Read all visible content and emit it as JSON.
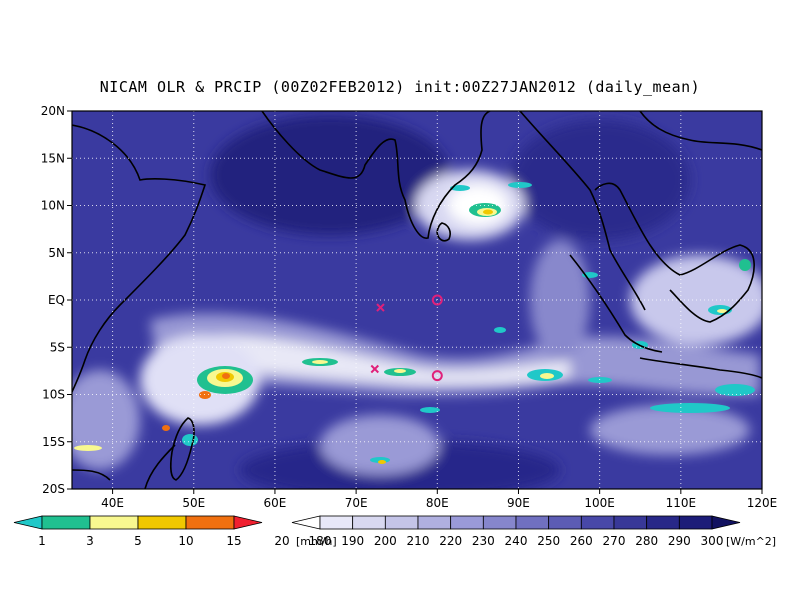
{
  "title": "NICAM OLR & PRCIP (00Z02FEB2012) init:00Z27JAN2012 (daily_mean)",
  "lat_labels": [
    "20N",
    "15N",
    "10N",
    "5N",
    "EQ",
    "5S",
    "10S",
    "15S",
    "20S"
  ],
  "lon_labels": [
    "40E",
    "50E",
    "60E",
    "70E",
    "80E",
    "90E",
    "100E",
    "110E",
    "120E"
  ],
  "precip_legend": {
    "unit": "[mm/h]",
    "ticks": [
      "1",
      "3",
      "5",
      "10",
      "15",
      "20"
    ],
    "colors": [
      "#20c8c8",
      "#20c090",
      "#f8f890",
      "#f0c800",
      "#f07010",
      "#f02030"
    ]
  },
  "olr_legend": {
    "unit": "[W/m^2]",
    "ticks": [
      "180",
      "190",
      "200",
      "210",
      "220",
      "230",
      "240",
      "250",
      "260",
      "270",
      "280",
      "290",
      "300"
    ],
    "colors": [
      "#ffffff",
      "#e8e8f8",
      "#d8d8f0",
      "#c4c4e8",
      "#b0b0e0",
      "#9a9ad8",
      "#8686cc",
      "#7070c0",
      "#5c5cb4",
      "#4848a8",
      "#383898",
      "#282888",
      "#1c1c78",
      "#121260"
    ]
  },
  "markers": [
    {
      "type": "x",
      "lat": -0.8,
      "lon": 73.0,
      "color": "#e0207a"
    },
    {
      "type": "x",
      "lat": -7.3,
      "lon": 72.3,
      "color": "#e0207a"
    },
    {
      "type": "circle",
      "lat": 0.0,
      "lon": 80.0,
      "color": "#e0207a"
    },
    {
      "type": "circle",
      "lat": -8.0,
      "lon": 80.0,
      "color": "#e0207a"
    }
  ]
}
